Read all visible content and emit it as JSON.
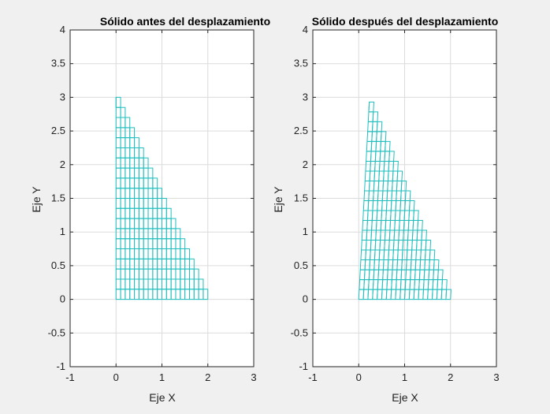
{
  "chart_data": [
    {
      "type": "mesh",
      "title": "Sólido antes del desplazamiento",
      "xlabel": "Eje X",
      "ylabel": "Eje Y",
      "xlim": [
        -1,
        3
      ],
      "ylim": [
        -1,
        4
      ],
      "xticks": [
        -1,
        0,
        1,
        2,
        3
      ],
      "yticks": [
        -1,
        -0.5,
        0,
        0.5,
        1,
        1.5,
        2,
        2.5,
        3,
        3.5,
        4
      ],
      "xtick_labels": [
        "-1",
        "0",
        "1",
        "2",
        "3"
      ],
      "ytick_labels": [
        "-1",
        "-0.5",
        "0",
        "0.5",
        "1",
        "1.5",
        "2",
        "2.5",
        "3",
        "3.5",
        "4"
      ],
      "grid": true,
      "mesh": {
        "x_max": 2,
        "y_max": 3,
        "divisions": 20,
        "displacement_x_at_top": 0
      }
    },
    {
      "type": "mesh",
      "title": "Sólido después del desplazamiento",
      "xlabel": "Eje X",
      "ylabel": "Eje Y",
      "xlim": [
        -1,
        3
      ],
      "ylim": [
        -1,
        4
      ],
      "xticks": [
        -1,
        0,
        1,
        2,
        3
      ],
      "yticks": [
        -1,
        -0.5,
        0,
        0.5,
        1,
        1.5,
        2,
        2.5,
        3,
        3.5,
        4
      ],
      "xtick_labels": [
        "-1",
        "0",
        "1",
        "2",
        "3"
      ],
      "ytick_labels": [
        "-1",
        "-0.5",
        "0",
        "0.5",
        "1",
        "1.5",
        "2",
        "2.5",
        "3",
        "3.5",
        "4"
      ],
      "grid": true,
      "mesh": {
        "x_max": 2,
        "y_max": 2.93,
        "divisions": 20,
        "displacement_x_at_top": 0.23
      }
    }
  ],
  "colors": {
    "mesh": "#1fbfbf",
    "grid": "#dcdcdc",
    "axes": "#262626",
    "plot_background": "#ffffff",
    "figure_background": "#f0f0f0"
  }
}
